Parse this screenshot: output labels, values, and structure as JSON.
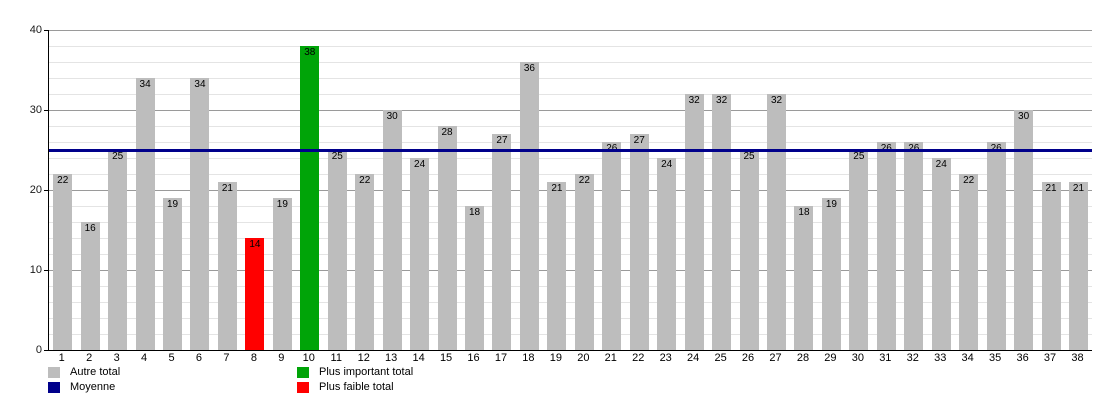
{
  "chart_data": {
    "type": "bar",
    "categories": [
      "1",
      "2",
      "3",
      "4",
      "5",
      "6",
      "7",
      "8",
      "9",
      "10",
      "11",
      "12",
      "13",
      "14",
      "15",
      "16",
      "17",
      "18",
      "19",
      "20",
      "21",
      "22",
      "23",
      "24",
      "25",
      "26",
      "27",
      "28",
      "29",
      "30",
      "31",
      "32",
      "33",
      "34",
      "35",
      "36",
      "37",
      "38"
    ],
    "values": [
      22,
      16,
      25,
      34,
      19,
      34,
      21,
      14,
      19,
      38,
      25,
      22,
      30,
      24,
      28,
      18,
      27,
      36,
      21,
      22,
      26,
      27,
      24,
      32,
      32,
      25,
      32,
      18,
      19,
      25,
      26,
      26,
      24,
      22,
      26,
      30,
      21,
      21
    ],
    "max_category": "10",
    "max_value": 38,
    "min_category": "8",
    "min_value": 14,
    "average_line": 25,
    "ylim": [
      0,
      40
    ],
    "yticks": [
      0,
      10,
      20,
      30,
      40
    ],
    "minor_grid_step": 2,
    "grid": "on",
    "title": "",
    "xlabel": "",
    "ylabel": "",
    "legend_position": "bottom",
    "legend": {
      "columns": [
        [
          {
            "color_key": "other",
            "label": "Autre total"
          },
          {
            "color_key": "average",
            "label": "Moyenne"
          }
        ],
        [
          {
            "color_key": "max",
            "label": "Plus important total"
          },
          {
            "color_key": "min",
            "label": "Plus faible total"
          }
        ]
      ]
    },
    "colors": {
      "other": "#bdbdbd",
      "max": "#00a408",
      "min": "#ff0000",
      "average": "#00008b",
      "grid_minor": "#e4e4e4",
      "grid_major": "#9a9a9a",
      "axis": "#000000",
      "value_text": "#000000"
    }
  }
}
